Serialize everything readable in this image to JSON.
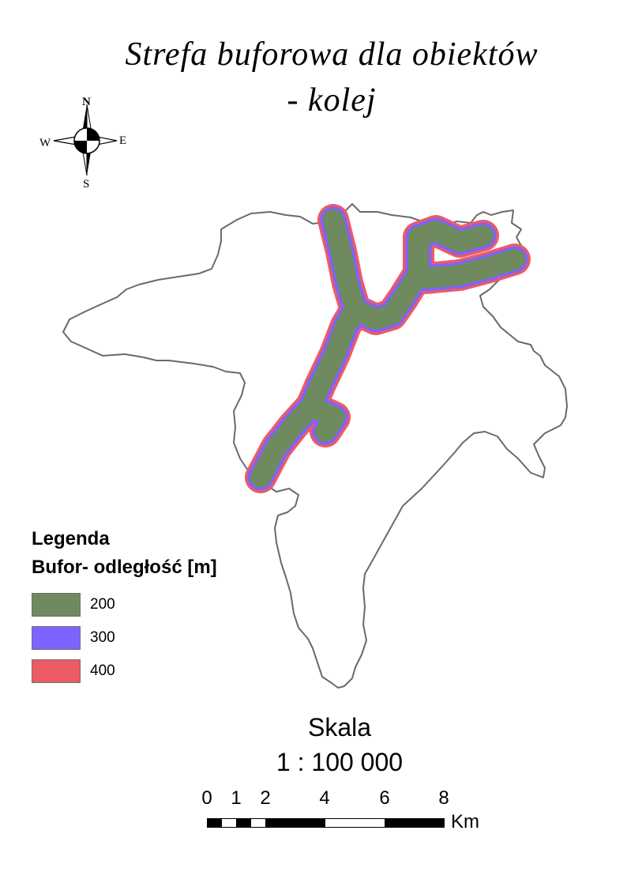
{
  "title": {
    "line1": "Strefa buforowa dla obiektów",
    "line2": "- kolej"
  },
  "north_arrow": {
    "n": "N",
    "e": "E",
    "s": "S",
    "w": "W",
    "icon": "compass-rose-icon"
  },
  "legend": {
    "heading": "Legenda",
    "subheading": "Bufor- odległość [m]",
    "items": [
      {
        "label": "200",
        "color": "#6f8a5f"
      },
      {
        "label": "300",
        "color": "#7d63ff"
      },
      {
        "label": "400",
        "color": "#ec5a66"
      }
    ]
  },
  "scale": {
    "heading": "Skala",
    "ratio": "1 : 100 000",
    "ticks": [
      "0",
      "1",
      "2",
      "4",
      "6",
      "8"
    ],
    "unit": "Km"
  },
  "colors": {
    "boundary": "#6a6a6a",
    "buffer_200": "#6f8a5f",
    "buffer_300": "#7d63ff",
    "buffer_400": "#ec5a66"
  }
}
